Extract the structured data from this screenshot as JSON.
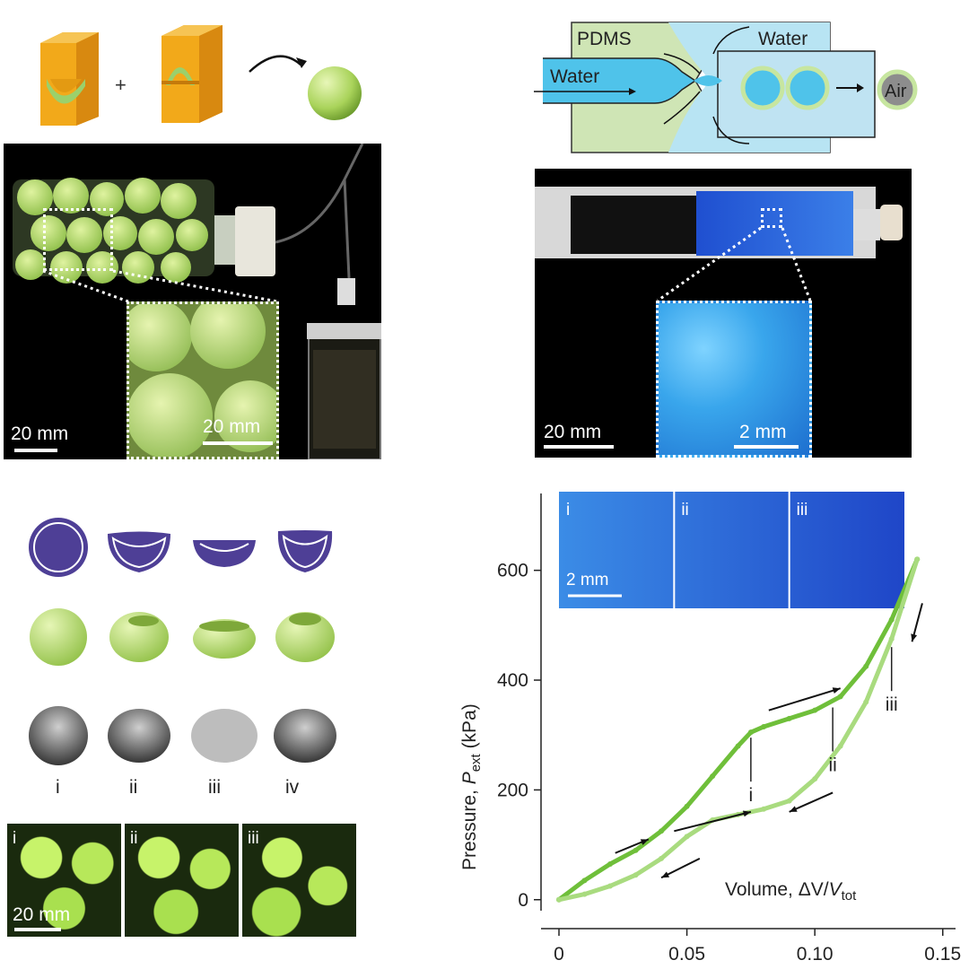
{
  "panel_a": {
    "plus_sign": "+",
    "photo_scale": "20 mm",
    "inset_scale": "20 mm"
  },
  "panel_b": {
    "labels": {
      "pdms": "PDMS",
      "water_left": "Water",
      "water_top": "Water",
      "air": "Air"
    },
    "photo_scale": "20 mm",
    "inset_scale": "2 mm"
  },
  "panel_c": {
    "state_labels": [
      "i",
      "ii",
      "iii",
      "iv"
    ],
    "photo_labels": [
      "i",
      "ii",
      "iii"
    ],
    "photo_scale": "20 mm"
  },
  "chart_data": {
    "type": "line",
    "title": "",
    "xlabel": "Volume, ΔV/V_tot",
    "ylabel": "Pressure, P_ext (kPa)",
    "xlim": [
      0,
      0.155
    ],
    "ylim": [
      -20,
      740
    ],
    "x_ticks": [
      "0",
      "0.05",
      "0.10",
      "0.15"
    ],
    "y_ticks": [
      "0",
      "200",
      "400",
      "600"
    ],
    "series": [
      {
        "direction": "loading",
        "x": [
          0,
          0.01,
          0.02,
          0.03,
          0.04,
          0.05,
          0.06,
          0.07,
          0.075,
          0.08,
          0.09,
          0.1,
          0.11,
          0.12,
          0.13,
          0.14
        ],
        "y": [
          0,
          35,
          65,
          90,
          125,
          170,
          225,
          280,
          305,
          315,
          330,
          345,
          370,
          425,
          510,
          620
        ]
      },
      {
        "direction": "unloading",
        "x": [
          0.14,
          0.13,
          0.12,
          0.11,
          0.1,
          0.09,
          0.08,
          0.07,
          0.06,
          0.05,
          0.04,
          0.03,
          0.02,
          0.01,
          0
        ],
        "y": [
          620,
          475,
          360,
          280,
          220,
          180,
          165,
          155,
          145,
          115,
          75,
          45,
          25,
          10,
          0
        ]
      }
    ],
    "annotations": [
      "i",
      "ii",
      "iii"
    ],
    "inset_labels": [
      "i",
      "ii",
      "iii"
    ],
    "inset_scale": "2 mm",
    "colors": {
      "loading": "#6fbf3a",
      "unloading": "#a9db7f",
      "inset": "#2a5fd6"
    }
  }
}
